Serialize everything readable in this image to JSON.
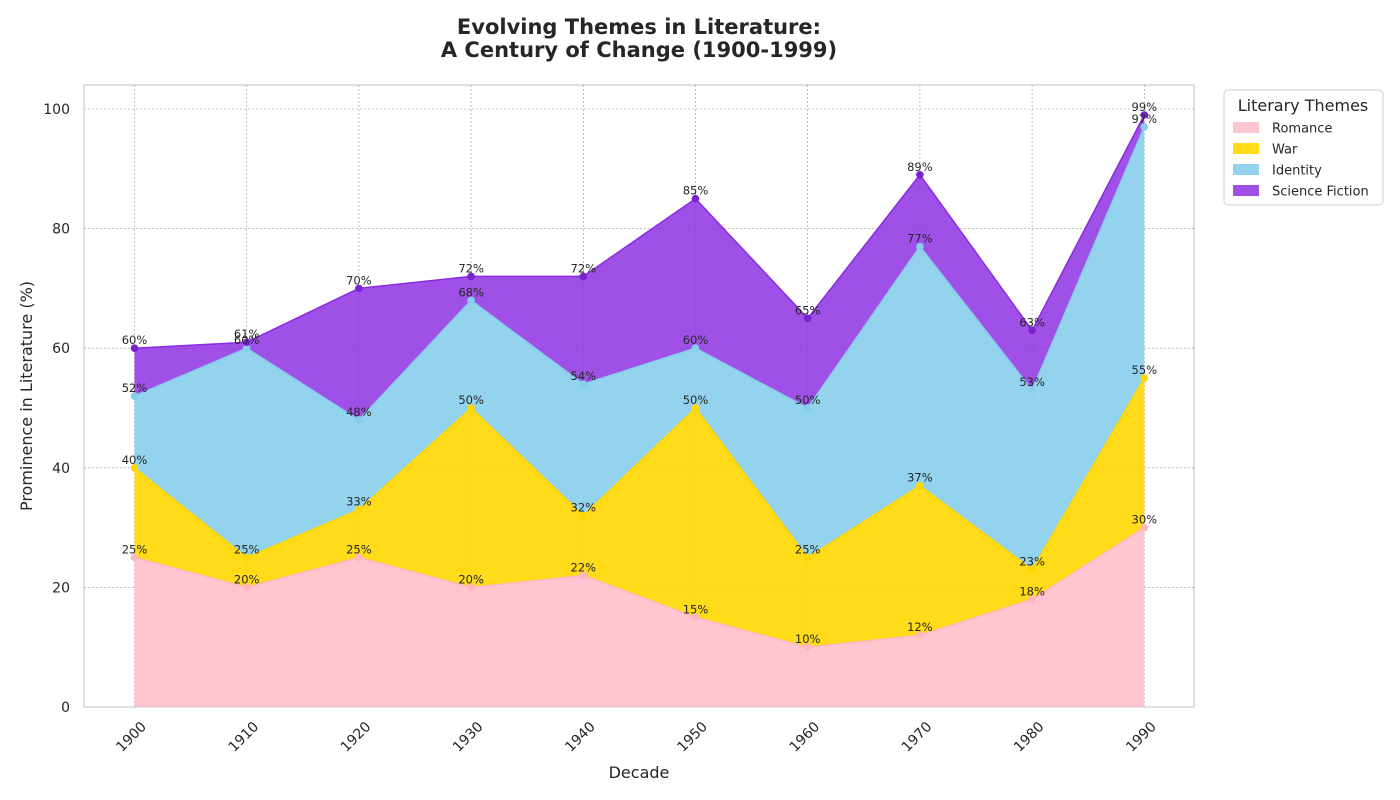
{
  "chart_data": {
    "type": "area",
    "stacked": true,
    "title_line1": "Evolving Themes in Literature:",
    "title_line2": "A Century of Change (1900-1999)",
    "xlabel": "Decade",
    "ylabel": "Prominence in Literature (%)",
    "x": [
      1900,
      1910,
      1920,
      1930,
      1940,
      1950,
      1960,
      1970,
      1980,
      1990
    ],
    "ylim": [
      0,
      104
    ],
    "yticks": [
      0,
      20,
      40,
      60,
      80,
      100
    ],
    "grid": true,
    "legend_title": "Literary Themes",
    "legend_position": "outside-top-right",
    "series": [
      {
        "name": "Romance",
        "values": [
          25,
          20,
          25,
          20,
          22,
          15,
          10,
          12,
          18,
          30
        ],
        "color": "#ffc0cb"
      },
      {
        "name": "War",
        "values": [
          15,
          5,
          8,
          30,
          10,
          35,
          15,
          25,
          5,
          25
        ],
        "color": "#ffd700"
      },
      {
        "name": "Identity",
        "values": [
          12,
          35,
          15,
          18,
          22,
          10,
          25,
          40,
          30,
          42
        ],
        "color": "#87ceeb"
      },
      {
        "name": "Science Fiction",
        "values": [
          8,
          1,
          22,
          4,
          18,
          25,
          15,
          12,
          10,
          2
        ],
        "color": "#8a2be2"
      }
    ],
    "cumulative_labels": [
      [
        "25%",
        "20%",
        "25%",
        "20%",
        "22%",
        "15%",
        "10%",
        "12%",
        "18%",
        "30%"
      ],
      [
        "40%",
        "25%",
        "33%",
        "50%",
        "32%",
        "50%",
        "25%",
        "37%",
        "23%",
        "55%"
      ],
      [
        "52%",
        "60%",
        "48%",
        "68%",
        "54%",
        "60%",
        "50%",
        "77%",
        "53%",
        "97%"
      ],
      [
        "60%",
        "61%",
        "70%",
        "72%",
        "72%",
        "85%",
        "65%",
        "89%",
        "63%",
        "99%"
      ]
    ]
  }
}
